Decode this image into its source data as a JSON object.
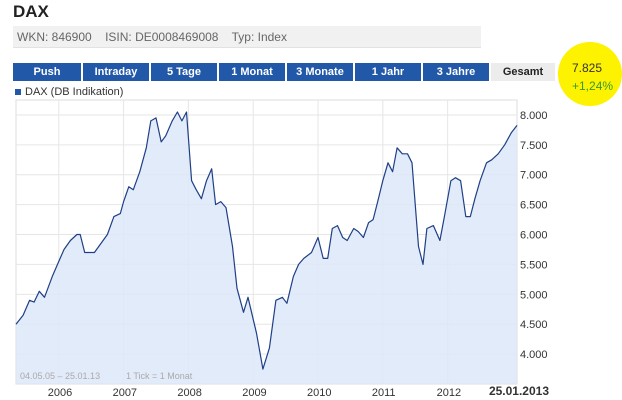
{
  "header": {
    "title": "DAX",
    "wkn": "WKN: 846900",
    "isin": "ISIN: DE0008469008",
    "typ": "Typ: Index"
  },
  "tabs": [
    {
      "label": "Push",
      "active": false
    },
    {
      "label": "Intraday",
      "active": false
    },
    {
      "label": "5 Tage",
      "active": false
    },
    {
      "label": "1 Monat",
      "active": false
    },
    {
      "label": "3 Monate",
      "active": false
    },
    {
      "label": "1 Jahr",
      "active": false
    },
    {
      "label": "3 Jahre",
      "active": false
    },
    {
      "label": "Gesamt",
      "active": true
    }
  ],
  "quote": {
    "price": "7.825",
    "change": "+1,24%"
  },
  "legend": {
    "label": "DAX (DB Indikation)"
  },
  "footer": {
    "range": "04.05.05 – 25.01.13",
    "tick": "1 Tick = 1 Monat",
    "end_date": "25.01.2013"
  },
  "colors": {
    "line": "#1f3f86",
    "fill": "#dde8f8",
    "tab": "#2158a8",
    "badge": "#fdf200",
    "positive": "#3a9a2a"
  },
  "chart_data": {
    "type": "area",
    "title": "",
    "xlabel": "",
    "ylabel": "",
    "ylim": [
      3500,
      8250
    ],
    "xlim": [
      2005.34,
      2013.07
    ],
    "grid": true,
    "legend_placement": "top-left",
    "y_ticks": [
      {
        "value": 8000,
        "label": "8.000"
      },
      {
        "value": 7500,
        "label": "7.500"
      },
      {
        "value": 7000,
        "label": "7.000"
      },
      {
        "value": 6500,
        "label": "6.500"
      },
      {
        "value": 6000,
        "label": "6.000"
      },
      {
        "value": 5500,
        "label": "5.500"
      },
      {
        "value": 5000,
        "label": "5.000"
      },
      {
        "value": 4500,
        "label": "4.500"
      },
      {
        "value": 4000,
        "label": "4.000"
      }
    ],
    "x_ticks": [
      {
        "value": 2006,
        "label": "2006"
      },
      {
        "value": 2007,
        "label": "2007"
      },
      {
        "value": 2008,
        "label": "2008"
      },
      {
        "value": 2009,
        "label": "2009"
      },
      {
        "value": 2010,
        "label": "2010"
      },
      {
        "value": 2011,
        "label": "2011"
      },
      {
        "value": 2012,
        "label": "2012"
      }
    ],
    "series": [
      {
        "values": [
          [
            2005.34,
            4500
          ],
          [
            2005.45,
            4650
          ],
          [
            2005.55,
            4900
          ],
          [
            2005.62,
            4870
          ],
          [
            2005.7,
            5050
          ],
          [
            2005.78,
            4950
          ],
          [
            2005.9,
            5300
          ],
          [
            2006.0,
            5550
          ],
          [
            2006.08,
            5750
          ],
          [
            2006.18,
            5900
          ],
          [
            2006.28,
            6000
          ],
          [
            2006.33,
            6000
          ],
          [
            2006.4,
            5700
          ],
          [
            2006.48,
            5700
          ],
          [
            2006.55,
            5700
          ],
          [
            2006.65,
            5850
          ],
          [
            2006.75,
            6000
          ],
          [
            2006.85,
            6300
          ],
          [
            2006.95,
            6350
          ],
          [
            2007.0,
            6550
          ],
          [
            2007.08,
            6800
          ],
          [
            2007.15,
            6750
          ],
          [
            2007.25,
            7050
          ],
          [
            2007.35,
            7450
          ],
          [
            2007.42,
            7900
          ],
          [
            2007.5,
            7950
          ],
          [
            2007.58,
            7550
          ],
          [
            2007.65,
            7650
          ],
          [
            2007.75,
            7900
          ],
          [
            2007.83,
            8050
          ],
          [
            2007.9,
            7900
          ],
          [
            2007.97,
            8050
          ],
          [
            2008.05,
            6900
          ],
          [
            2008.12,
            6750
          ],
          [
            2008.2,
            6600
          ],
          [
            2008.28,
            6900
          ],
          [
            2008.36,
            7100
          ],
          [
            2008.42,
            6500
          ],
          [
            2008.5,
            6550
          ],
          [
            2008.58,
            6450
          ],
          [
            2008.68,
            5800
          ],
          [
            2008.75,
            5100
          ],
          [
            2008.85,
            4700
          ],
          [
            2008.92,
            4950
          ],
          [
            2009.05,
            4350
          ],
          [
            2009.15,
            3750
          ],
          [
            2009.25,
            4100
          ],
          [
            2009.35,
            4900
          ],
          [
            2009.45,
            4950
          ],
          [
            2009.52,
            4850
          ],
          [
            2009.62,
            5300
          ],
          [
            2009.7,
            5500
          ],
          [
            2009.78,
            5600
          ],
          [
            2009.9,
            5700
          ],
          [
            2010.0,
            5950
          ],
          [
            2010.08,
            5600
          ],
          [
            2010.15,
            5600
          ],
          [
            2010.22,
            6100
          ],
          [
            2010.3,
            6150
          ],
          [
            2010.38,
            5950
          ],
          [
            2010.45,
            5900
          ],
          [
            2010.55,
            6100
          ],
          [
            2010.62,
            6050
          ],
          [
            2010.7,
            5950
          ],
          [
            2010.78,
            6200
          ],
          [
            2010.85,
            6250
          ],
          [
            2010.92,
            6550
          ],
          [
            2011.0,
            6900
          ],
          [
            2011.08,
            7200
          ],
          [
            2011.15,
            7050
          ],
          [
            2011.22,
            7450
          ],
          [
            2011.3,
            7350
          ],
          [
            2011.38,
            7350
          ],
          [
            2011.45,
            7200
          ],
          [
            2011.55,
            5800
          ],
          [
            2011.62,
            5500
          ],
          [
            2011.68,
            6100
          ],
          [
            2011.78,
            6150
          ],
          [
            2011.88,
            5900
          ],
          [
            2011.95,
            6300
          ],
          [
            2012.05,
            6900
          ],
          [
            2012.12,
            6950
          ],
          [
            2012.2,
            6900
          ],
          [
            2012.28,
            6300
          ],
          [
            2012.35,
            6300
          ],
          [
            2012.42,
            6600
          ],
          [
            2012.5,
            6900
          ],
          [
            2012.6,
            7200
          ],
          [
            2012.68,
            7250
          ],
          [
            2012.78,
            7350
          ],
          [
            2012.88,
            7500
          ],
          [
            2012.98,
            7700
          ],
          [
            2013.07,
            7825
          ]
        ]
      }
    ]
  }
}
